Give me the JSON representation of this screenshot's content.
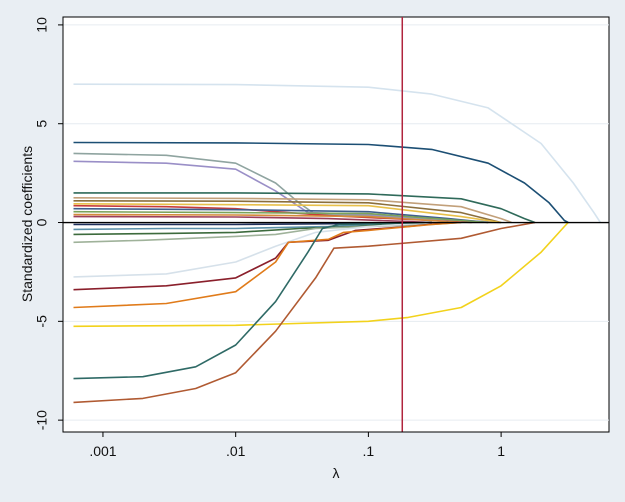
{
  "chart_data": {
    "type": "line",
    "xlabel": "λ",
    "ylabel": "Standardized coefficients",
    "x_scale": "log",
    "xlim": [
      0.0005,
      6.5
    ],
    "ylim": [
      -10.6,
      10.4
    ],
    "x_ticks": [
      {
        "value": 0.001,
        "label": ".001"
      },
      {
        "value": 0.01,
        "label": ".01"
      },
      {
        "value": 0.1,
        "label": ".1"
      },
      {
        "value": 1,
        "label": "1"
      }
    ],
    "y_ticks": [
      {
        "value": 10,
        "label": "10"
      },
      {
        "value": 5,
        "label": "5"
      },
      {
        "value": 0,
        "label": "0"
      },
      {
        "value": -5,
        "label": "-5"
      },
      {
        "value": -10,
        "label": "-10"
      }
    ],
    "grid": true,
    "zero_line": true,
    "reference_line": {
      "x": 0.18,
      "color": "#b0243d"
    },
    "series": [
      {
        "color": "#d5e3ee",
        "points": [
          [
            0.0006,
            7.0
          ],
          [
            0.01,
            6.98
          ],
          [
            0.1,
            6.85
          ],
          [
            0.3,
            6.5
          ],
          [
            0.8,
            5.8
          ],
          [
            2.0,
            4.0
          ],
          [
            3.5,
            2.0
          ],
          [
            5.0,
            0.5
          ],
          [
            5.6,
            0
          ]
        ]
      },
      {
        "color": "#1c4f74",
        "points": [
          [
            0.0006,
            4.05
          ],
          [
            0.01,
            4.03
          ],
          [
            0.1,
            3.95
          ],
          [
            0.3,
            3.7
          ],
          [
            0.8,
            3.0
          ],
          [
            1.5,
            2.0
          ],
          [
            2.3,
            1.0
          ],
          [
            3.0,
            0.1
          ],
          [
            3.2,
            0
          ]
        ]
      },
      {
        "color": "#8fa4a0",
        "points": [
          [
            0.0006,
            3.5
          ],
          [
            0.003,
            3.4
          ],
          [
            0.01,
            3.0
          ],
          [
            0.02,
            2.0
          ],
          [
            0.03,
            1.0
          ],
          [
            0.04,
            0.4
          ],
          [
            0.1,
            0.35
          ],
          [
            0.5,
            0.1
          ],
          [
            1.0,
            0
          ]
        ]
      },
      {
        "color": "#9a8fc7",
        "points": [
          [
            0.0006,
            3.1
          ],
          [
            0.003,
            3.0
          ],
          [
            0.01,
            2.7
          ],
          [
            0.02,
            1.6
          ],
          [
            0.035,
            0.5
          ],
          [
            0.1,
            0.4
          ],
          [
            0.5,
            0.1
          ],
          [
            1.0,
            0
          ]
        ]
      },
      {
        "color": "#2f6a5a",
        "points": [
          [
            0.0006,
            1.5
          ],
          [
            0.01,
            1.5
          ],
          [
            0.1,
            1.45
          ],
          [
            0.5,
            1.2
          ],
          [
            1.0,
            0.7
          ],
          [
            1.5,
            0.2
          ],
          [
            1.8,
            0
          ]
        ]
      },
      {
        "color": "#c2a07a",
        "points": [
          [
            0.0006,
            1.25
          ],
          [
            0.01,
            1.22
          ],
          [
            0.1,
            1.15
          ],
          [
            0.5,
            0.8
          ],
          [
            1.0,
            0.2
          ],
          [
            1.2,
            0
          ]
        ]
      },
      {
        "color": "#8b6f3d",
        "points": [
          [
            0.0006,
            1.1
          ],
          [
            0.01,
            1.08
          ],
          [
            0.1,
            1.0
          ],
          [
            0.5,
            0.5
          ],
          [
            1.0,
            0
          ]
        ]
      },
      {
        "color": "#e8c04a",
        "points": [
          [
            0.0006,
            0.95
          ],
          [
            0.01,
            0.9
          ],
          [
            0.1,
            0.85
          ],
          [
            0.5,
            0.3
          ],
          [
            1.0,
            0
          ]
        ]
      },
      {
        "color": "#c73b3b",
        "points": [
          [
            0.0006,
            0.85
          ],
          [
            0.003,
            0.8
          ],
          [
            0.01,
            0.7
          ],
          [
            0.05,
            0.35
          ],
          [
            0.3,
            0.1
          ],
          [
            0.6,
            0
          ]
        ]
      },
      {
        "color": "#3f5e8c",
        "points": [
          [
            0.0006,
            0.7
          ],
          [
            0.01,
            0.65
          ],
          [
            0.1,
            0.55
          ],
          [
            0.4,
            0.2
          ],
          [
            0.8,
            0
          ]
        ]
      },
      {
        "color": "#7aa35a",
        "points": [
          [
            0.0006,
            0.55
          ],
          [
            0.01,
            0.5
          ],
          [
            0.1,
            0.45
          ],
          [
            0.5,
            0.1
          ],
          [
            0.8,
            0
          ]
        ]
      },
      {
        "color": "#d48a3a",
        "points": [
          [
            0.0006,
            0.4
          ],
          [
            0.01,
            0.38
          ],
          [
            0.1,
            0.3
          ],
          [
            0.3,
            0.1
          ],
          [
            0.5,
            0
          ]
        ]
      },
      {
        "color": "#9c3e5c",
        "points": [
          [
            0.0006,
            0.3
          ],
          [
            0.01,
            0.28
          ],
          [
            0.05,
            0.2
          ],
          [
            0.2,
            0.05
          ],
          [
            0.3,
            0
          ]
        ]
      },
      {
        "color": "#1f2f5a",
        "points": [
          [
            0.0006,
            -0.1
          ],
          [
            0.01,
            -0.1
          ],
          [
            0.1,
            -0.05
          ],
          [
            0.3,
            0
          ]
        ]
      },
      {
        "color": "#5a8fa8",
        "points": [
          [
            0.0006,
            -0.35
          ],
          [
            0.003,
            -0.3
          ],
          [
            0.01,
            -0.3
          ],
          [
            0.05,
            -0.2
          ],
          [
            0.1,
            -0.1
          ],
          [
            0.3,
            0
          ]
        ]
      },
      {
        "color": "#3d6b3d",
        "points": [
          [
            0.0006,
            -0.6
          ],
          [
            0.003,
            -0.55
          ],
          [
            0.01,
            -0.5
          ],
          [
            0.03,
            -0.3
          ],
          [
            0.08,
            -0.2
          ],
          [
            0.2,
            -0.05
          ],
          [
            0.3,
            0
          ]
        ]
      },
      {
        "color": "#9fb29a",
        "points": [
          [
            0.0006,
            -1.0
          ],
          [
            0.002,
            -0.9
          ],
          [
            0.01,
            -0.7
          ],
          [
            0.02,
            -0.6
          ],
          [
            0.04,
            -0.3
          ],
          [
            0.1,
            -0.2
          ],
          [
            0.3,
            -0.1
          ],
          [
            0.5,
            0
          ]
        ]
      },
      {
        "color": "#d6e1ea",
        "points": [
          [
            0.0006,
            -2.75
          ],
          [
            0.003,
            -2.6
          ],
          [
            0.01,
            -2.0
          ],
          [
            0.02,
            -1.2
          ],
          [
            0.04,
            -0.5
          ],
          [
            0.1,
            -0.2
          ],
          [
            0.3,
            0
          ]
        ]
      },
      {
        "color": "#8a1f2b",
        "points": [
          [
            0.0006,
            -3.4
          ],
          [
            0.003,
            -3.2
          ],
          [
            0.01,
            -2.8
          ],
          [
            0.02,
            -1.8
          ],
          [
            0.025,
            -1.0
          ],
          [
            0.05,
            -0.9
          ],
          [
            0.06,
            -0.7
          ],
          [
            0.08,
            -0.4
          ],
          [
            0.2,
            -0.2
          ],
          [
            0.4,
            0
          ]
        ]
      },
      {
        "color": "#e07b1a",
        "points": [
          [
            0.0006,
            -4.3
          ],
          [
            0.003,
            -4.1
          ],
          [
            0.01,
            -3.5
          ],
          [
            0.02,
            -2.0
          ],
          [
            0.025,
            -1.0
          ],
          [
            0.05,
            -0.85
          ],
          [
            0.065,
            -0.5
          ],
          [
            0.1,
            -0.4
          ],
          [
            0.3,
            -0.1
          ],
          [
            0.5,
            0
          ]
        ]
      },
      {
        "color": "#f2d21c",
        "points": [
          [
            0.0006,
            -5.25
          ],
          [
            0.01,
            -5.2
          ],
          [
            0.1,
            -5.0
          ],
          [
            0.2,
            -4.8
          ],
          [
            0.5,
            -4.3
          ],
          [
            1.0,
            -3.2
          ],
          [
            2.0,
            -1.5
          ],
          [
            3.0,
            -0.2
          ],
          [
            3.2,
            0
          ]
        ]
      },
      {
        "color": "#2f6a66",
        "points": [
          [
            0.0006,
            -7.9
          ],
          [
            0.002,
            -7.8
          ],
          [
            0.005,
            -7.3
          ],
          [
            0.01,
            -6.2
          ],
          [
            0.02,
            -4.0
          ],
          [
            0.035,
            -1.5
          ],
          [
            0.045,
            -0.3
          ],
          [
            0.06,
            -0.1
          ],
          [
            0.3,
            0
          ]
        ]
      },
      {
        "color": "#b05a32",
        "points": [
          [
            0.0006,
            -9.1
          ],
          [
            0.002,
            -8.9
          ],
          [
            0.005,
            -8.4
          ],
          [
            0.01,
            -7.6
          ],
          [
            0.02,
            -5.5
          ],
          [
            0.04,
            -2.8
          ],
          [
            0.055,
            -1.3
          ],
          [
            0.1,
            -1.2
          ],
          [
            0.5,
            -0.8
          ],
          [
            1.0,
            -0.3
          ],
          [
            1.8,
            0
          ]
        ]
      }
    ]
  }
}
